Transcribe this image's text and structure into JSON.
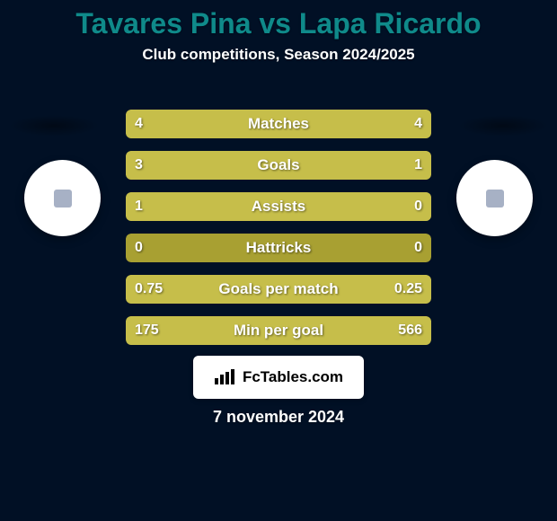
{
  "colors": {
    "page_bg": "#011025",
    "title": "#0f8a8a",
    "subtitle": "#ffffff",
    "bar_track": "#a8a032",
    "bar_fill": "#c6be4a",
    "bar_text": "#ffffff",
    "bar_label": "#ffffff",
    "avatar_bg": "#ffffff",
    "date": "#ffffff"
  },
  "typography": {
    "title_size": 32,
    "subtitle_size": 17,
    "bar_value_size": 16,
    "bar_label_size": 17,
    "date_size": 18,
    "brand_size": 17
  },
  "title": "Tavares Pina vs Lapa Ricardo",
  "subtitle": "Club competitions, Season 2024/2025",
  "player_left": "Tavares Pina",
  "player_right": "Lapa Ricardo",
  "rows": [
    {
      "label": "Matches",
      "left": "4",
      "right": "4",
      "left_pct": 50,
      "right_pct": 50
    },
    {
      "label": "Goals",
      "left": "3",
      "right": "1",
      "left_pct": 75,
      "right_pct": 25
    },
    {
      "label": "Assists",
      "left": "1",
      "right": "0",
      "left_pct": 100,
      "right_pct": 0
    },
    {
      "label": "Hattricks",
      "left": "0",
      "right": "0",
      "left_pct": 0,
      "right_pct": 0
    },
    {
      "label": "Goals per match",
      "left": "0.75",
      "right": "0.25",
      "left_pct": 75,
      "right_pct": 25
    },
    {
      "label": "Min per goal",
      "left": "175",
      "right": "566",
      "left_pct": 23.6,
      "right_pct": 76.4
    }
  ],
  "brand": "FcTables.com",
  "date": "7 november 2024"
}
